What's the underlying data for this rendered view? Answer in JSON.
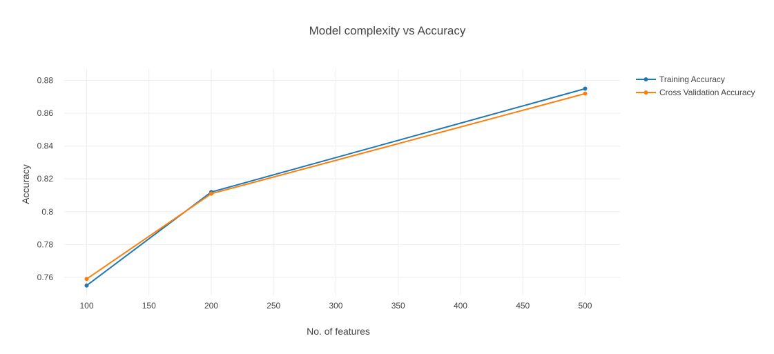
{
  "chart_data": {
    "type": "line",
    "title": "Model complexity vs Accuracy",
    "xlabel": "No. of features",
    "ylabel": "Accuracy",
    "xlim": [
      82,
      528
    ],
    "ylim": [
      0.749,
      0.887
    ],
    "xticks": [
      100,
      150,
      200,
      250,
      300,
      350,
      400,
      450,
      500
    ],
    "xtick_labels": [
      "100",
      "150",
      "200",
      "250",
      "300",
      "350",
      "400",
      "450",
      "500"
    ],
    "yticks": [
      0.76,
      0.78,
      0.8,
      0.82,
      0.84,
      0.86,
      0.88
    ],
    "ytick_labels": [
      "0.76",
      "0.78",
      "0.8",
      "0.82",
      "0.84",
      "0.86",
      "0.88"
    ],
    "grid": true,
    "legend_position": "top-right",
    "x": [
      100,
      200,
      500
    ],
    "series": [
      {
        "name": "Training Accuracy",
        "color": "#1f77b4",
        "values": [
          0.755,
          0.812,
          0.875
        ]
      },
      {
        "name": "Cross Validation Accuracy",
        "color": "#ff7f0e",
        "values": [
          0.759,
          0.811,
          0.872
        ]
      }
    ]
  }
}
